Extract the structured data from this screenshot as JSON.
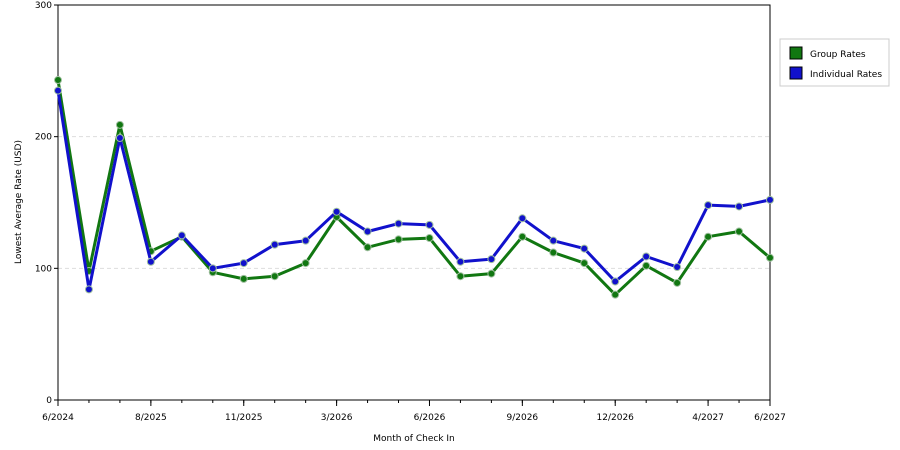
{
  "chart_data": {
    "type": "line",
    "title": "",
    "xlabel": "Month of Check In",
    "ylabel": "Lowest Average Rate (USD)",
    "ylim": [
      0,
      300
    ],
    "yticks": [
      0,
      100,
      200,
      300
    ],
    "grid": "horizontal-dashed",
    "legend_position": "top-right",
    "x_tick_labels": [
      {
        "index": 0,
        "label": "6/2024"
      },
      {
        "index": 3,
        "label": "8/2025"
      },
      {
        "index": 6,
        "label": "11/2025"
      },
      {
        "index": 9,
        "label": "3/2026"
      },
      {
        "index": 12,
        "label": "6/2026"
      },
      {
        "index": 15,
        "label": "9/2026"
      },
      {
        "index": 18,
        "label": "12/2026"
      },
      {
        "index": 21,
        "label": "4/2027"
      },
      {
        "index": 23,
        "label": "6/2027"
      }
    ],
    "point_count": 24,
    "series": [
      {
        "name": "Group Rates",
        "color": "#117711",
        "values": [
          243,
          98,
          209,
          113,
          124,
          97,
          92,
          94,
          104,
          139,
          116,
          122,
          123,
          94,
          96,
          124,
          112,
          104,
          80,
          102,
          89,
          124,
          128,
          108
        ]
      },
      {
        "name": "Individual Rates",
        "color": "#1111cc",
        "values": [
          235,
          84,
          199,
          105,
          125,
          100,
          104,
          118,
          121,
          143,
          128,
          134,
          133,
          105,
          107,
          138,
          121,
          115,
          90,
          109,
          101,
          148,
          147,
          152
        ]
      }
    ]
  }
}
